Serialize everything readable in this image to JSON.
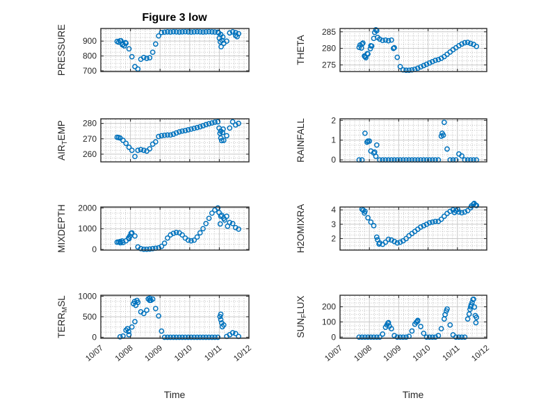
{
  "chart_data": {
    "type": "scatter",
    "title": "Figure 3 low",
    "xlabel": "Time",
    "x_tick_labels": [
      "10/07",
      "10/08",
      "10/09",
      "10/10",
      "10/11",
      "10/12"
    ],
    "xlim_days": [
      0,
      5
    ],
    "x_minor_divisions_per_day": 6,
    "y_minor_divisions_per_major": 4,
    "grid": "on",
    "minor_grid": "on",
    "marker": {
      "shape": "circle-open",
      "color": "#0072BD"
    },
    "axis_color": "#2b2b2b",
    "major_grid_color": "#c8c8c8",
    "minor_grid_color": "#b0b0b0",
    "t_days_since_10_07": [
      0.55,
      0.65,
      0.75,
      0.85,
      0.95,
      1.05,
      1.15,
      1.25,
      1.35,
      1.45,
      1.55,
      1.65,
      1.75,
      1.85,
      1.95,
      2.05,
      2.15,
      2.25,
      2.35,
      2.45,
      2.55,
      2.65,
      2.75,
      2.85,
      2.95,
      3.05,
      3.15,
      3.25,
      3.35,
      3.45,
      3.55,
      3.65,
      3.75,
      3.85,
      3.95,
      4.05,
      4.15,
      4.25,
      4.35,
      4.45,
      4.55,
      4.65
    ],
    "panels": [
      {
        "id": "pressure",
        "row": 0,
        "col": 0,
        "label": "PRESSURE",
        "label_segments": [
          {
            "text": "PRESSURE",
            "sub": false
          }
        ],
        "yticks": [
          700,
          800,
          900
        ],
        "ylim": [
          695,
          985
        ],
        "values": [
          898,
          902,
          878,
          886,
          848,
          795,
          728,
          712,
          778,
          790,
          784,
          788,
          825,
          880,
          935,
          958,
          960,
          962,
          961,
          963,
          962,
          961,
          962,
          963,
          962,
          961,
          962,
          963,
          962,
          961,
          962,
          963,
          962,
          961,
          960,
          945,
          885,
          900,
          955,
          962,
          938,
          950
        ],
        "extra_points": [
          [
            0.6,
            893
          ],
          [
            0.68,
            902
          ],
          [
            0.73,
            875
          ],
          [
            0.79,
            868
          ],
          [
            0.83,
            890
          ],
          [
            3.98,
            955
          ],
          [
            4.0,
            920
          ],
          [
            4.03,
            895
          ],
          [
            4.06,
            862
          ],
          [
            4.09,
            905
          ],
          [
            4.12,
            928
          ],
          [
            4.55,
            957
          ],
          [
            4.6,
            930
          ]
        ]
      },
      {
        "id": "theta",
        "row": 0,
        "col": 1,
        "label": "THETA",
        "label_segments": [
          {
            "text": "THETA",
            "sub": false
          }
        ],
        "yticks": [
          275,
          280,
          285
        ],
        "ylim": [
          273,
          286
        ],
        "values": [
          null,
          280.3,
          281.3,
          277.5,
          278.3,
          280.8,
          283,
          285.3,
          282.8,
          282.4,
          282.5,
          282.3,
          282.5,
          280.2,
          277.3,
          274.5,
          273.5,
          273.4,
          273.4,
          273.5,
          273.7,
          274,
          274.4,
          274.8,
          275.2,
          275.6,
          276,
          276.4,
          276.6,
          277,
          277.5,
          278.2,
          278.9,
          279.6,
          280.2,
          280.8,
          281.3,
          281.7,
          281.8,
          281.5,
          281.2,
          280.6
        ],
        "extra_points": [
          [
            0.68,
            281
          ],
          [
            0.73,
            280.1
          ],
          [
            0.78,
            281.6
          ],
          [
            0.83,
            277.7
          ],
          [
            0.88,
            277.2
          ],
          [
            0.93,
            278.4
          ],
          [
            1.03,
            279.9
          ],
          [
            1.08,
            280.7
          ],
          [
            1.18,
            284.8
          ],
          [
            1.22,
            285.6
          ],
          [
            1.28,
            283.3
          ],
          [
            1.82,
            280.0
          ]
        ]
      },
      {
        "id": "air-temp",
        "row": 1,
        "col": 0,
        "label": "AIR_TEMP",
        "label_segments": [
          {
            "text": "AIR",
            "sub": false
          },
          {
            "text": "T",
            "sub": true
          },
          {
            "text": "EMP",
            "sub": false
          }
        ],
        "yticks": [
          260,
          270,
          280
        ],
        "ylim": [
          255,
          283
        ],
        "values": [
          271,
          270.5,
          269,
          267,
          264.5,
          262.5,
          258.5,
          262.5,
          263,
          262.5,
          262,
          263.5,
          266.5,
          268,
          271.5,
          272,
          272.3,
          272.5,
          272.5,
          273,
          273.8,
          274.5,
          275,
          275.3,
          275.8,
          276.3,
          276.8,
          277.3,
          277.8,
          278.5,
          279.2,
          279.8,
          280.3,
          280.8,
          281,
          275,
          269,
          272,
          277,
          281,
          279,
          280
        ],
        "extra_points": [
          [
            0.6,
            270.8
          ],
          [
            3.99,
            277
          ],
          [
            4.02,
            273.5
          ],
          [
            4.05,
            270.5
          ],
          [
            4.08,
            268.8
          ],
          [
            4.11,
            274
          ],
          [
            4.13,
            276.3
          ]
        ]
      },
      {
        "id": "rainfall",
        "row": 1,
        "col": 1,
        "label": "RAINFALL",
        "label_segments": [
          {
            "text": "RAINFALL",
            "sub": false
          }
        ],
        "yticks": [
          0,
          1,
          2
        ],
        "ylim": [
          -0.1,
          2.08
        ],
        "values": [
          null,
          0,
          0,
          1.35,
          0.95,
          0.45,
          0.35,
          0.75,
          0,
          0,
          0,
          0,
          0,
          0,
          0,
          0,
          0,
          0,
          0,
          0,
          0,
          0,
          0,
          0,
          0,
          0,
          0,
          0,
          0,
          1.2,
          1.9,
          0.55,
          0,
          0,
          0,
          0.3,
          0.2,
          0,
          0,
          0,
          0,
          0
        ],
        "extra_points": [
          [
            0.92,
            0.9
          ],
          [
            1.0,
            0.95
          ],
          [
            1.18,
            0.4
          ],
          [
            1.22,
            0.18
          ],
          [
            3.48,
            1.35
          ],
          [
            3.52,
            1.25
          ]
        ]
      },
      {
        "id": "mixdepth",
        "row": 2,
        "col": 0,
        "label": "MIXDEPTH",
        "label_segments": [
          {
            "text": "MIXDEPTH",
            "sub": false
          }
        ],
        "yticks": [
          0,
          1000,
          2000
        ],
        "ylim": [
          -30,
          2045
        ],
        "values": [
          350,
          380,
          330,
          420,
          520,
          800,
          650,
          120,
          40,
          10,
          10,
          20,
          40,
          60,
          80,
          150,
          300,
          550,
          700,
          780,
          820,
          800,
          700,
          550,
          450,
          420,
          450,
          600,
          800,
          1000,
          1250,
          1500,
          1750,
          1900,
          2000,
          1600,
          1500,
          1600,
          1300,
          1250,
          1050,
          980
        ],
        "extra_points": [
          [
            0.6,
            360
          ],
          [
            0.66,
            320
          ],
          [
            0.72,
            410
          ],
          [
            0.94,
            560
          ],
          [
            0.98,
            640
          ],
          [
            1.02,
            780
          ],
          [
            3.99,
            1780
          ],
          [
            4.03,
            1230
          ],
          [
            4.08,
            1650
          ],
          [
            4.18,
            1420
          ],
          [
            4.28,
            1120
          ]
        ]
      },
      {
        "id": "h2omixra",
        "row": 2,
        "col": 1,
        "label": "H2OMIXRA",
        "label_segments": [
          {
            "text": "H2OMIXRA",
            "sub": false
          }
        ],
        "yticks": [
          2,
          3,
          4
        ],
        "ylim": [
          1.2,
          4.2
        ],
        "values": [
          null,
          null,
          4.05,
          3.9,
          3.45,
          3.15,
          2.9,
          2.1,
          1.7,
          1.6,
          1.75,
          1.95,
          1.9,
          1.8,
          1.7,
          1.75,
          1.85,
          2.0,
          2.2,
          2.35,
          2.5,
          2.65,
          2.8,
          2.9,
          3.0,
          3.1,
          3.15,
          3.2,
          3.2,
          3.35,
          3.55,
          3.75,
          3.9,
          4.0,
          3.95,
          3.85,
          3.8,
          3.85,
          3.95,
          4.15,
          4.4,
          4.3
        ],
        "extra_points": [
          [
            0.79,
            3.98
          ],
          [
            0.83,
            3.78
          ],
          [
            1.28,
            1.92
          ],
          [
            1.33,
            1.62
          ],
          [
            3.9,
            3.82
          ],
          [
            4.01,
            4.03
          ],
          [
            4.48,
            4.28
          ],
          [
            4.57,
            4.45
          ],
          [
            4.62,
            4.33
          ]
        ]
      },
      {
        "id": "terr-msl",
        "row": 3,
        "col": 0,
        "label": "TERR_MSL",
        "label_segments": [
          {
            "text": "TERR",
            "sub": false
          },
          {
            "text": "M",
            "sub": true
          },
          {
            "text": "SL",
            "sub": false
          }
        ],
        "yticks": [
          0,
          500,
          1000
        ],
        "ylim": [
          -26,
          1025
        ],
        "values": [
          null,
          10,
          30,
          170,
          60,
          250,
          380,
          850,
          620,
          580,
          660,
          900,
          930,
          700,
          520,
          150,
          0,
          0,
          0,
          0,
          0,
          0,
          0,
          0,
          0,
          0,
          0,
          0,
          0,
          0,
          0,
          0,
          0,
          0,
          0,
          560,
          300,
          20,
          60,
          110,
          90,
          20
        ],
        "extra_points": [
          [
            0.9,
            210
          ],
          [
            0.94,
            140
          ],
          [
            1.1,
            820
          ],
          [
            1.14,
            872
          ],
          [
            1.18,
            780
          ],
          [
            1.22,
            898
          ],
          [
            1.6,
            935
          ],
          [
            1.65,
            952
          ],
          [
            1.69,
            902
          ],
          [
            4.02,
            505
          ],
          [
            4.05,
            430
          ],
          [
            4.08,
            350
          ],
          [
            4.1,
            255
          ]
        ]
      },
      {
        "id": "sun-flux",
        "row": 3,
        "col": 1,
        "label": "SUN_FLUX",
        "label_segments": [
          {
            "text": "SUN",
            "sub": false
          },
          {
            "text": "F",
            "sub": true
          },
          {
            "text": "LUX",
            "sub": false
          }
        ],
        "yticks": [
          0,
          100,
          200
        ],
        "ylim": [
          -8,
          276
        ],
        "values": [
          null,
          0,
          0,
          0,
          0,
          0,
          0,
          0,
          0,
          20,
          65,
          95,
          55,
          10,
          0,
          0,
          0,
          0,
          5,
          40,
          85,
          110,
          70,
          25,
          0,
          0,
          0,
          0,
          10,
          55,
          120,
          185,
          80,
          15,
          0,
          0,
          0,
          0,
          120,
          200,
          250,
          130
        ],
        "extra_points": [
          [
            1.6,
            80
          ],
          [
            1.63,
            92
          ],
          [
            1.68,
            72
          ],
          [
            2.6,
            98
          ],
          [
            2.64,
            104
          ],
          [
            3.58,
            148
          ],
          [
            3.62,
            172
          ],
          [
            4.4,
            152
          ],
          [
            4.43,
            183
          ],
          [
            4.47,
            213
          ],
          [
            4.5,
            228
          ],
          [
            4.53,
            248
          ],
          [
            4.58,
            198
          ],
          [
            4.61,
            142
          ],
          [
            4.63,
            95
          ]
        ]
      }
    ]
  }
}
